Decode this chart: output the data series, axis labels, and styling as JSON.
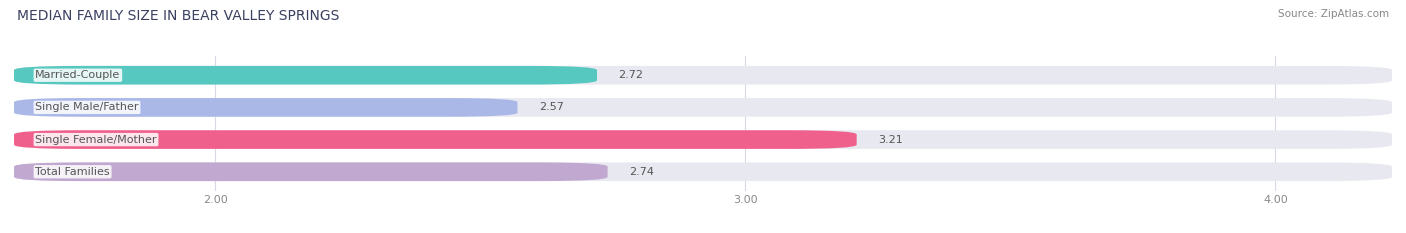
{
  "title": "MEDIAN FAMILY SIZE IN BEAR VALLEY SPRINGS",
  "source": "Source: ZipAtlas.com",
  "categories": [
    "Married-Couple",
    "Single Male/Father",
    "Single Female/Mother",
    "Total Families"
  ],
  "values": [
    2.72,
    2.57,
    3.21,
    2.74
  ],
  "bar_colors": [
    "#56c8c0",
    "#aab8e8",
    "#f0608c",
    "#c0a8d0"
  ],
  "bar_bg_color": "#e8e8f0",
  "xlim_min": 1.62,
  "xlim_max": 4.22,
  "xticks": [
    2.0,
    3.0,
    4.0
  ],
  "xtick_labels": [
    "2.00",
    "3.00",
    "4.00"
  ],
  "figsize": [
    14.06,
    2.33
  ],
  "dpi": 100,
  "label_fontsize": 8,
  "value_fontsize": 8,
  "title_fontsize": 10,
  "source_fontsize": 7.5,
  "title_color": "#3a4060",
  "source_color": "#888888",
  "label_color": "#555555",
  "value_color": "#555555",
  "bg_color": "#ffffff"
}
